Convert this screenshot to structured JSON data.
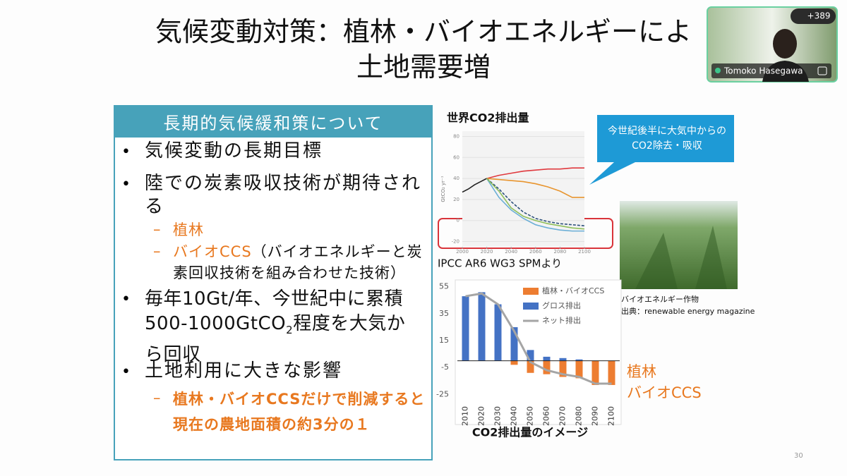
{
  "meeting": {
    "participants_badge": "+389",
    "speaker_name": "Tomoko Hasegawa"
  },
  "slide": {
    "title_lines": [
      "気候変動対策：植林・バイオエネルギーによ",
      "土地需要増"
    ],
    "box_header": "長期的気候緩和策について",
    "bullets": [
      {
        "parts": [
          "気候変動の長期目標"
        ]
      },
      {
        "parts": [
          "陸での炭素吸収技術が期待される"
        ],
        "subs": [
          {
            "parts": [
              "植林"
            ]
          },
          {
            "parts": [
              "バイオCCS",
              "（バイオエネルギーと炭素回収技術を組み合わせた技術）"
            ]
          }
        ]
      },
      {
        "parts": [
          "毎年10Gt/年、今世紀中に累積500-1000GtCO",
          "2",
          "程度を大気から回収"
        ]
      },
      {
        "parts": [
          "土地利用に大きな影響"
        ],
        "subs": [
          {
            "parts": [
              "植林・バイオCCSだけで削減すると現在の農地面積の約3分の１"
            ]
          }
        ]
      }
    ],
    "photo_caption": [
      "バイオエネルギー作物",
      "出典：renewable energy magazine"
    ],
    "page_number": 30
  },
  "chart_data": [
    {
      "type": "line",
      "title": "世界CO2排出量",
      "ylabel": "GtCO₂ yr⁻¹",
      "source": "IPCC AR6 WG3 SPMより",
      "callout": "今世紀後半に大気中からのCO2除去・吸収",
      "x": [
        2000,
        2005,
        2010,
        2015,
        2020,
        2030,
        2040,
        2050,
        2060,
        2070,
        2080,
        2090,
        2100
      ],
      "series": [
        {
          "color": "#222222",
          "values": [
            27,
            30,
            34,
            37,
            40,
            null,
            null,
            null,
            null,
            null,
            null,
            null,
            null
          ]
        },
        {
          "color": "#e0393e",
          "values": [
            null,
            null,
            null,
            null,
            40,
            43,
            45,
            47,
            48,
            49,
            49,
            50,
            50
          ]
        },
        {
          "color": "#e8952f",
          "values": [
            null,
            null,
            null,
            null,
            40,
            39,
            38,
            37,
            35,
            32,
            28,
            22,
            22
          ]
        },
        {
          "color": "#6aaed6",
          "values": [
            null,
            null,
            null,
            null,
            40,
            22,
            10,
            2,
            -4,
            -7,
            -9,
            -10,
            -10
          ]
        },
        {
          "color": "#2b4f7a",
          "values": [
            null,
            null,
            null,
            null,
            40,
            30,
            18,
            8,
            2,
            -1,
            -3,
            -4,
            -5
          ]
        },
        {
          "color": "#8fbf5a",
          "values": [
            null,
            null,
            null,
            null,
            40,
            28,
            12,
            4,
            0,
            -3,
            -5,
            -7,
            -8
          ]
        }
      ],
      "xlim": [
        2000,
        2100
      ],
      "xticks": [
        2000,
        2020,
        2040,
        2060,
        2080,
        2100
      ],
      "ylim": [
        -25,
        85
      ],
      "yticks": [
        80,
        60,
        40,
        20,
        0,
        -20
      ]
    },
    {
      "type": "bar",
      "title": "CO2排出量のイメージ",
      "categories": [
        "2010",
        "2020",
        "2030",
        "2040",
        "2050",
        "2060",
        "2070",
        "2080",
        "2090",
        "2100"
      ],
      "series": [
        {
          "name": "植林・バイオCCS",
          "color": "#ed7d31",
          "values": [
            0,
            0,
            0,
            -3,
            -9,
            -10,
            -12,
            -13,
            -18,
            -18
          ]
        },
        {
          "name": "グロス排出",
          "color": "#4472c4",
          "values": [
            48,
            51,
            42,
            25,
            8,
            3,
            2,
            1,
            0,
            0
          ]
        },
        {
          "name": "ネット排出",
          "color": "#a5a5a5",
          "type": "line",
          "values": [
            48,
            50,
            42,
            22,
            -1,
            -7,
            -10,
            -12,
            -17,
            -17
          ]
        }
      ],
      "annotations": [
        "植林",
        "バイオCCS"
      ],
      "ylim": [
        -28,
        58
      ],
      "yticks": [
        55,
        35,
        15,
        -5,
        -25
      ]
    }
  ]
}
